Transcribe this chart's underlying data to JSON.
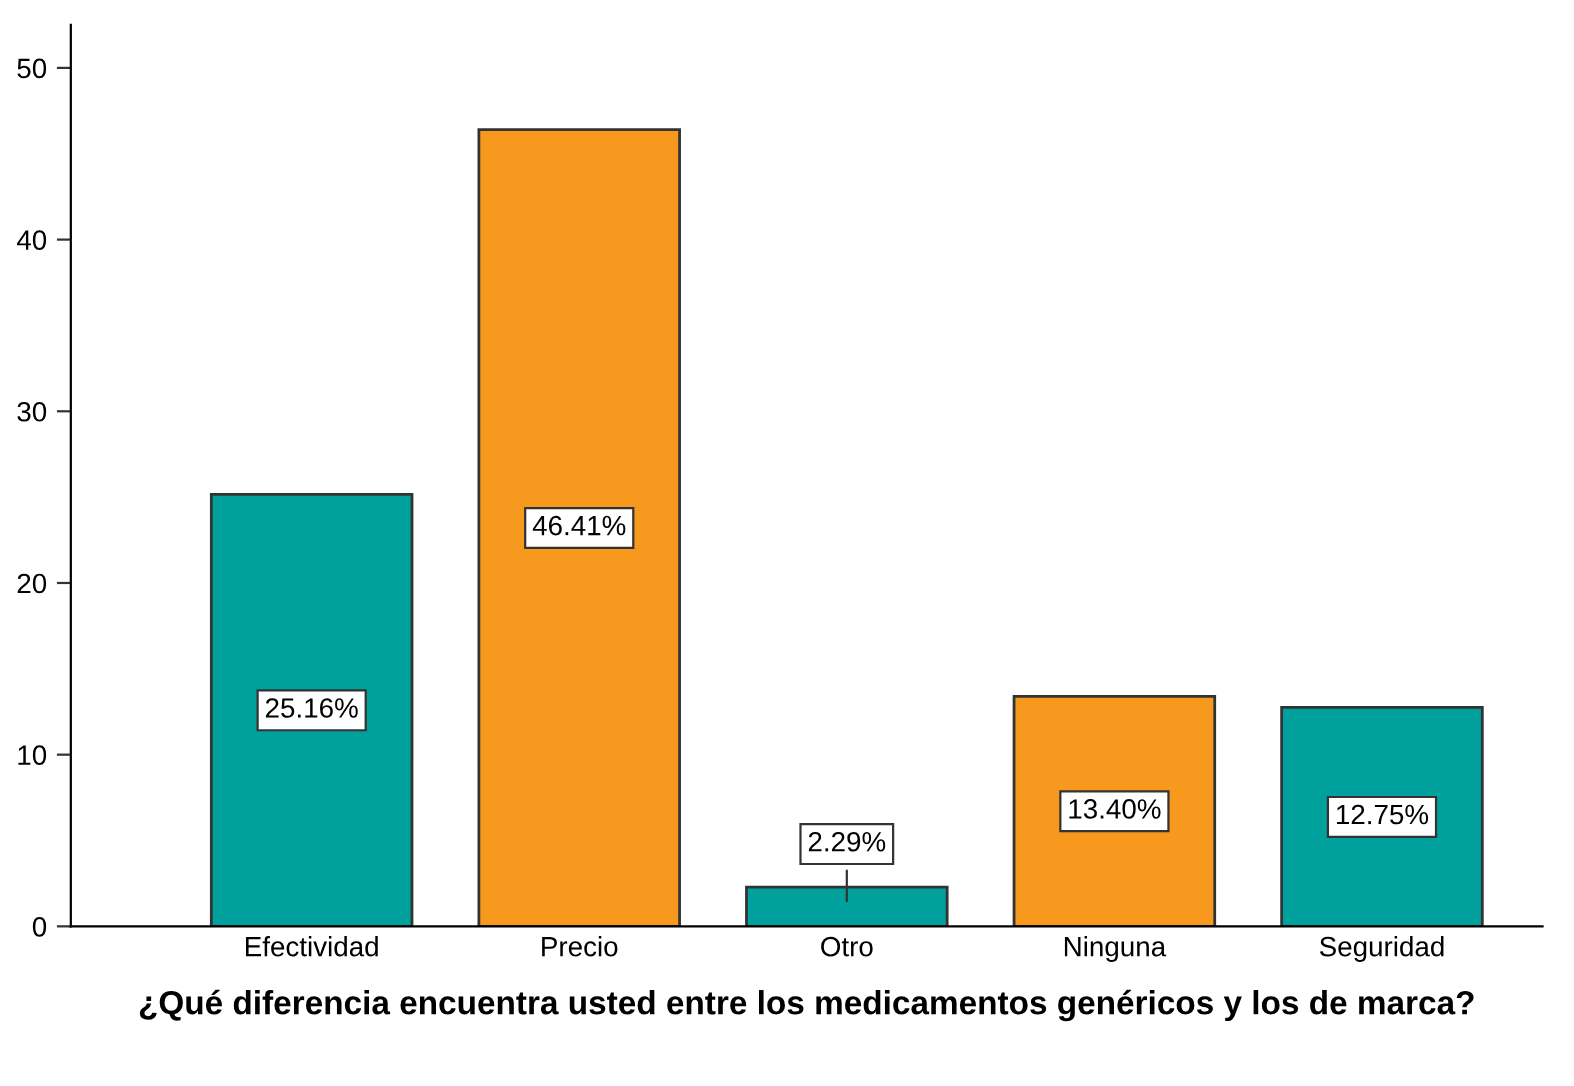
{
  "chart_data": {
    "type": "bar",
    "xlabel": "¿Qué diferencia encuentra usted entre los medicamentos genéricos y los de marca?",
    "categories": [
      "Efectividad",
      "Precio",
      "Otro",
      "Ninguna",
      "Seguridad"
    ],
    "values": [
      25.16,
      46.41,
      2.29,
      13.4,
      12.75
    ],
    "colors": [
      "#00a19d",
      "#f7991f",
      "#00a19d",
      "#f7991f",
      "#00a19d"
    ],
    "value_labels": [
      "25.16%",
      "46.41%",
      "2.29%",
      "13.40%",
      "12.75%"
    ],
    "ylim": [
      0,
      52.5
    ],
    "yticks": [
      0,
      10,
      20,
      30,
      40,
      50
    ],
    "grid": false
  }
}
